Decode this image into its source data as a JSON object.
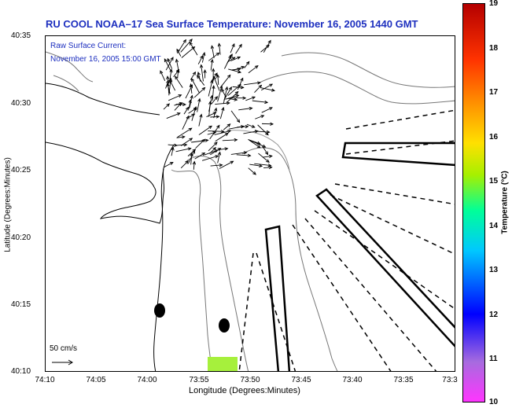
{
  "title": "RU COOL  NOAA–17  Sea Surface Temperature:  November 16, 2005 1440 GMT",
  "legend": {
    "line1": "Raw Surface Current:",
    "line2": "November 16, 2005 15:00 GMT"
  },
  "axes": {
    "y_title": "Latitude (Degrees:Minutes)",
    "x_title": "Longitude (Degrees:Minutes)",
    "y_ticks": [
      "40:35",
      "40:30",
      "40:25",
      "40:20",
      "40:15",
      "40:10"
    ],
    "x_ticks": [
      "74:10",
      "74:05",
      "74:00",
      "73:55",
      "73:50",
      "73:45",
      "73:40",
      "73:35",
      "73:3"
    ]
  },
  "scale_arrow": {
    "label": "50 cm/s"
  },
  "colorbar": {
    "title": "Temperature (°C)",
    "ticks": [
      "19",
      "18",
      "17",
      "16",
      "15",
      "14",
      "13",
      "12",
      "11",
      "10"
    ],
    "colors": [
      "#b40000",
      "#ff3300",
      "#ff9900",
      "#ffe000",
      "#a6f000",
      "#00ff99",
      "#00c8ff",
      "#0000ff",
      "#a76bdf",
      "#ff35ff"
    ]
  }
}
